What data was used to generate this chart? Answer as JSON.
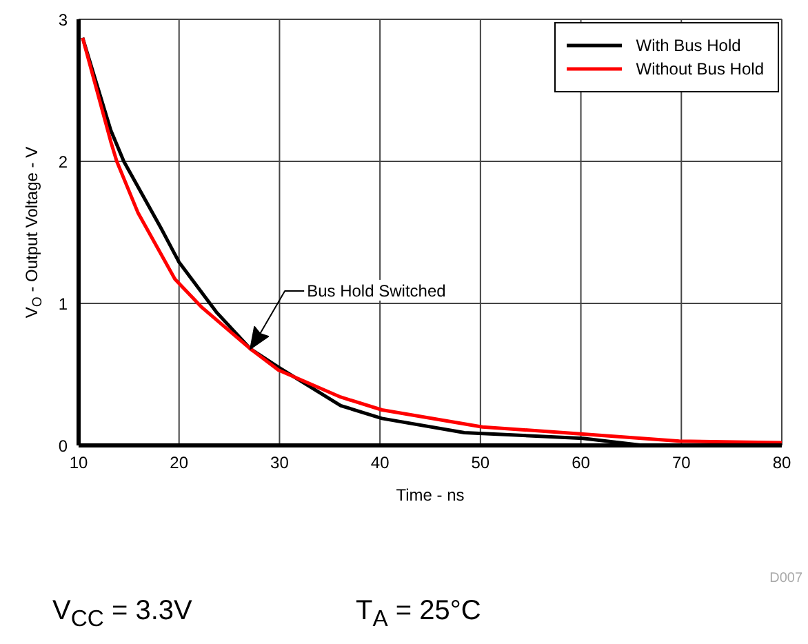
{
  "chart_data": {
    "type": "line",
    "xlabel": "Time - ns",
    "ylabel": "V$_{O}$ - Output Voltage - V",
    "xlim": [
      10,
      80
    ],
    "xticks": [
      10,
      20,
      30,
      40,
      50,
      60,
      70,
      80
    ],
    "ylim": [
      0,
      3
    ],
    "yticks": [
      0,
      1,
      2,
      3
    ],
    "grid": true,
    "legend": "top right",
    "line_style": "solid",
    "marker": "none",
    "series": [
      {
        "name": "With Bus Hold",
        "color": "#000000",
        "x": [
          10.4,
          13.2,
          14.5,
          18.2,
          20,
          23.7,
          27.1,
          29.9,
          36.1,
          40.2,
          48.4,
          60.2,
          66.2
        ],
        "values": [
          2.87,
          2.22,
          2.0,
          1.53,
          1.29,
          0.94,
          0.68,
          0.55,
          0.28,
          0.19,
          0.09,
          0.05,
          0.0
        ]
      },
      {
        "name": "Without Bus Hold",
        "color": "#ff0000",
        "x": [
          10.4,
          13.2,
          13.8,
          15.9,
          19.6,
          22.3,
          27.1,
          29.9,
          36.1,
          40.2,
          50.2,
          60.2,
          69.8,
          80
        ],
        "values": [
          2.87,
          2.14,
          2.0,
          1.64,
          1.17,
          0.97,
          0.68,
          0.53,
          0.34,
          0.25,
          0.13,
          0.08,
          0.03,
          0.02
        ]
      }
    ],
    "annotations": [
      "Bus Hold Switched",
      "D007",
      "V$_{CC}$ = 3.3V",
      "T$_{A}$ = 25°C"
    ]
  }
}
